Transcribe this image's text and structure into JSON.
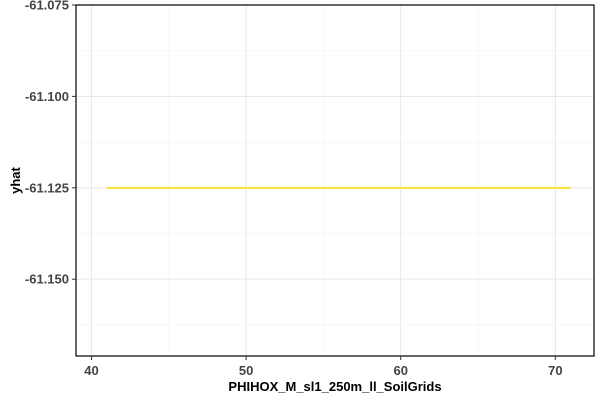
{
  "chart_data": {
    "type": "line",
    "xlabel": "PHIHOX_M_sl1_250m_ll_SoilGrids",
    "ylabel": "yhat",
    "xlim": [
      39,
      72.5
    ],
    "ylim": [
      -61.171,
      -61.075
    ],
    "x_ticks": [
      40,
      50,
      60,
      70
    ],
    "y_ticks": [
      -61.075,
      -61.1,
      -61.125,
      -61.15
    ],
    "y_tick_labels": [
      "-61.075",
      "-61.100",
      "-61.125",
      "-61.150"
    ],
    "grid": true,
    "series": [
      {
        "color": "#FFE135",
        "x": [
          41,
          71
        ],
        "y": [
          -61.125,
          -61.125
        ]
      }
    ]
  }
}
